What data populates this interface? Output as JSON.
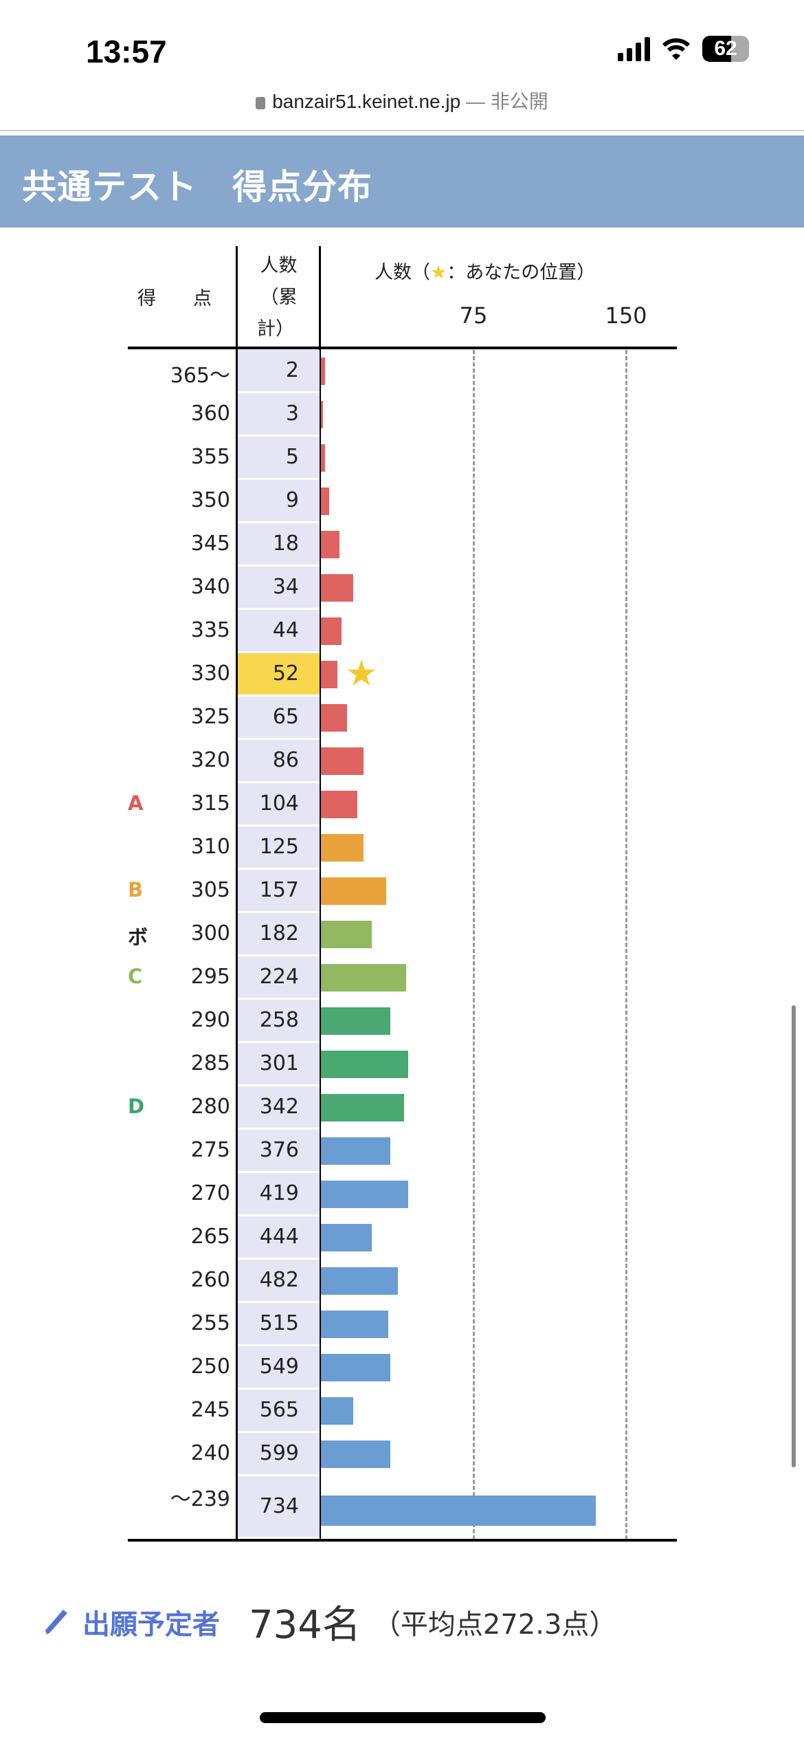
{
  "status_bar": {
    "time": "13:57",
    "battery": "62"
  },
  "browser": {
    "domain": "banzair51.keinet.ne.jp",
    "separator": "—",
    "privacy": "非公開"
  },
  "page_title": "共通テスト　得点分布",
  "table": {
    "col_score": "得　　点",
    "col_cum_1": "人数",
    "col_cum_2": "（累",
    "col_cum_3": "計）",
    "col_bar": "人数（",
    "col_bar_star": "★",
    "col_bar_rest": "：あなたの位置）",
    "ticks": [
      "75",
      "150"
    ],
    "tick_values": [
      75,
      150
    ]
  },
  "chart_data": {
    "type": "bar",
    "title": "共通テスト 得点分布",
    "xlabel": "人数",
    "xlim": [
      0,
      160
    ],
    "categories": [
      "365〜",
      "360",
      "355",
      "350",
      "345",
      "340",
      "335",
      "330",
      "325",
      "320",
      "315",
      "310",
      "305",
      "300",
      "295",
      "290",
      "285",
      "280",
      "275",
      "270",
      "265",
      "260",
      "255",
      "250",
      "245",
      "240",
      "〜239"
    ],
    "cumulative": [
      "2",
      "3",
      "5",
      "9",
      "18",
      "34",
      "44",
      "52",
      "65",
      "86",
      "104",
      "125",
      "157",
      "182",
      "224",
      "258",
      "301",
      "342",
      "376",
      "419",
      "444",
      "482",
      "515",
      "549",
      "565",
      "599",
      "734"
    ],
    "values": [
      2,
      1,
      2,
      4,
      9,
      16,
      10,
      8,
      13,
      21,
      18,
      21,
      32,
      25,
      42,
      34,
      43,
      41,
      34,
      43,
      25,
      38,
      33,
      34,
      16,
      34,
      135
    ],
    "colors": [
      "#de6361",
      "#de6361",
      "#de6361",
      "#de6361",
      "#de6361",
      "#de6361",
      "#de6361",
      "#de6361",
      "#de6361",
      "#de6361",
      "#de6361",
      "#e9a23b",
      "#e9a23b",
      "#93b862",
      "#93b862",
      "#4aa873",
      "#4aa873",
      "#4aa873",
      "#6a9dd2",
      "#6a9dd2",
      "#6a9dd2",
      "#6a9dd2",
      "#6a9dd2",
      "#6a9dd2",
      "#6a9dd2",
      "#6a9dd2",
      "#6a9dd2"
    ],
    "your_position_index": 7,
    "grades": [
      {
        "label": "A",
        "index": 10,
        "color": "#de5a58"
      },
      {
        "label": "B",
        "index": 12,
        "color": "#e9a23b"
      },
      {
        "label": "ボ",
        "index": 13,
        "color": "#222222"
      },
      {
        "label": "C",
        "index": 14,
        "color": "#8fb95a"
      },
      {
        "label": "D",
        "index": 17,
        "color": "#3fa36e"
      }
    ]
  },
  "footer": {
    "label": "出願予定者",
    "count": "734名",
    "avg": "（平均点272.3点）"
  },
  "colors": {
    "header": "#87a7cc",
    "cell": "#e5e5f5",
    "highlight": "#f8d64e",
    "link": "#5574d6"
  }
}
